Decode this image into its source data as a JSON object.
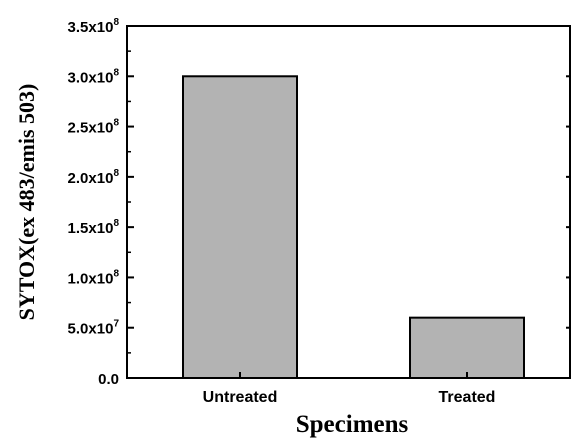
{
  "chart_data": {
    "type": "bar",
    "title": "",
    "xlabel": "Specimens",
    "ylabel": "SYTOX(ex 483/emis 503)",
    "categories": [
      "Untreated",
      "Treated"
    ],
    "values": [
      300000000,
      60000000
    ],
    "ylim": [
      0,
      350000000
    ],
    "yticks": [
      {
        "value": 0,
        "mantissa": "0.0",
        "exponent": ""
      },
      {
        "value": 50000000,
        "mantissa": "5.0x10",
        "exponent": "7"
      },
      {
        "value": 100000000,
        "mantissa": "1.0x10",
        "exponent": "8"
      },
      {
        "value": 150000000,
        "mantissa": "1.5x10",
        "exponent": "8"
      },
      {
        "value": 200000000,
        "mantissa": "2.0x10",
        "exponent": "8"
      },
      {
        "value": 250000000,
        "mantissa": "2.5x10",
        "exponent": "8"
      },
      {
        "value": 300000000,
        "mantissa": "3.0x10",
        "exponent": "8"
      },
      {
        "value": 350000000,
        "mantissa": "3.5x10",
        "exponent": "8"
      }
    ],
    "bar_color": "#b3b3b3",
    "grid": false,
    "legend": "none"
  }
}
